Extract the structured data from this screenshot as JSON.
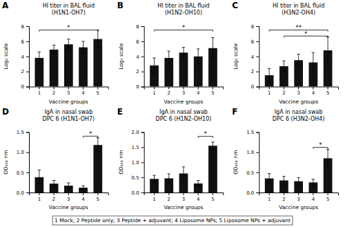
{
  "chart_data": [
    {
      "type": "bar",
      "panel_label": "A",
      "title": "HI titer in BAL fluid\n(H1N1-OH7)",
      "x_label": "Vaccine groups",
      "y_label": "Log₂ scale",
      "categories": [
        1,
        2,
        3,
        4,
        5
      ],
      "values": [
        3.8,
        4.9,
        5.6,
        5.2,
        6.3
      ],
      "errors": [
        0.8,
        0.6,
        0.7,
        0.8,
        1.2
      ],
      "color": "#111111",
      "grid": false,
      "ylim": [
        0,
        8
      ],
      "yticks": [
        0,
        2,
        4,
        6,
        8
      ],
      "annotations": [
        {
          "text": "*",
          "x1": 1,
          "x2": 5,
          "y": 7.5
        }
      ]
    },
    {
      "type": "bar",
      "panel_label": "B",
      "title": "HI titer in BAL fluid\n(H1N2-OH10)",
      "x_label": "Vaccine groups",
      "y_label": "Log₂ scale",
      "categories": [
        1,
        2,
        3,
        4,
        5
      ],
      "values": [
        2.8,
        3.8,
        4.5,
        4.0,
        5.1
      ],
      "errors": [
        1.0,
        0.9,
        0.7,
        1.0,
        1.4
      ],
      "color": "#111111",
      "grid": false,
      "ylim": [
        0,
        8
      ],
      "yticks": [
        0,
        2,
        4,
        6,
        8
      ],
      "annotations": [
        {
          "text": "*",
          "x1": 1,
          "x2": 5,
          "y": 7.5
        }
      ]
    },
    {
      "type": "bar",
      "panel_label": "C",
      "title": "HI titer in BAL fluid\n(H3N2-OH4)",
      "x_label": "Vaccine groups",
      "y_label": "Log₂ scale",
      "categories": [
        1,
        2,
        3,
        4,
        5
      ],
      "values": [
        1.5,
        2.7,
        3.5,
        3.2,
        4.8
      ],
      "errors": [
        0.9,
        0.7,
        0.8,
        1.3,
        1.8
      ],
      "color": "#111111",
      "grid": false,
      "ylim": [
        0,
        8
      ],
      "yticks": [
        0,
        2,
        4,
        6,
        8
      ],
      "annotations": [
        {
          "text": "**",
          "x1": 1,
          "x2": 5,
          "y": 7.5
        },
        {
          "text": "*",
          "x1": 2,
          "x2": 5,
          "y": 6.7
        }
      ]
    },
    {
      "type": "bar",
      "panel_label": "D",
      "title": "IgA in nasal swab\nDPC 6 (H1N1-OH7)",
      "x_label": "Vaccine groups",
      "y_label": "OD₄₅₀ nm",
      "categories": [
        1,
        2,
        3,
        4,
        5
      ],
      "values": [
        0.38,
        0.22,
        0.17,
        0.12,
        1.18
      ],
      "errors": [
        0.18,
        0.08,
        0.07,
        0.05,
        0.18
      ],
      "color": "#111111",
      "grid": false,
      "ylim": [
        0,
        1.5
      ],
      "yticks": [
        {
          "value": 0.0,
          "label": "0.0"
        },
        0.5,
        {
          "value": 1.0,
          "label": "1.0"
        },
        1.5
      ],
      "annotations": [
        {
          "text": "*",
          "x1": 4,
          "x2": 5,
          "y": 1.4
        }
      ]
    },
    {
      "type": "bar",
      "panel_label": "E",
      "title": "IgA in nasal swab\nDPC 6 (H1N2-OH10)",
      "x_label": "Vaccine groups",
      "y_label": "OD₄₅₀ nm",
      "categories": [
        1,
        2,
        3,
        4,
        5
      ],
      "values": [
        0.45,
        0.47,
        0.63,
        0.3,
        1.55
      ],
      "errors": [
        0.12,
        0.15,
        0.22,
        0.1,
        0.12
      ],
      "color": "#111111",
      "grid": false,
      "ylim": [
        0,
        2.0
      ],
      "yticks": [
        {
          "value": 0.0,
          "label": "0.0"
        },
        0.5,
        {
          "value": 1.0,
          "label": "1.0"
        },
        1.5,
        {
          "value": 2.0,
          "label": "2.0"
        }
      ],
      "annotations": [
        {
          "text": "*",
          "x1": 4,
          "x2": 5,
          "y": 1.86
        }
      ]
    },
    {
      "type": "bar",
      "panel_label": "F",
      "title": "IgA in nasal swab\nDPC 6 (H3N2-OH4)",
      "x_label": "Vaccine groups",
      "y_label": "OD₄₅₀ nm",
      "categories": [
        1,
        2,
        3,
        4,
        5
      ],
      "values": [
        0.35,
        0.3,
        0.28,
        0.25,
        0.85
      ],
      "errors": [
        0.12,
        0.1,
        0.09,
        0.08,
        0.22
      ],
      "color": "#111111",
      "grid": false,
      "ylim": [
        0,
        1.5
      ],
      "yticks": [
        {
          "value": 0.0,
          "label": "0.0"
        },
        0.5,
        {
          "value": 1.0,
          "label": "1.0"
        },
        1.5
      ],
      "annotations": [
        {
          "text": "*",
          "x1": 4,
          "x2": 5,
          "y": 1.12
        }
      ]
    }
  ],
  "annotations": [
    {
      "text": "1 Mock; 2 Peptide only; 3 Peptide + adjuvant; 4 Liposome NPs; 5 Liposome NPs + adjuvant"
    }
  ]
}
